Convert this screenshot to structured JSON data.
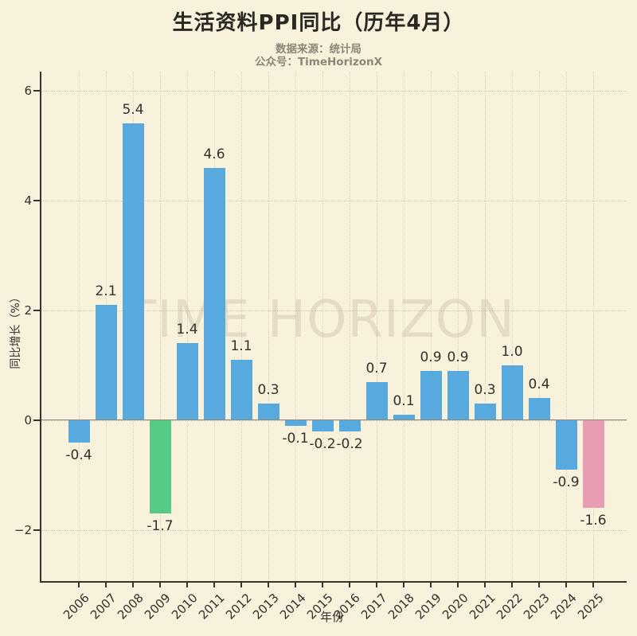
{
  "header": {
    "title": "生活资料PPI同比（历年4月）",
    "subtitle_source": "数据来源：统计局",
    "subtitle_account": "公众号：TimeHorizonX"
  },
  "watermark": "TIME HORIZON",
  "chart_data": {
    "type": "bar",
    "title": "生活资料PPI同比（历年4月）",
    "xlabel": "年份",
    "ylabel": "同比增长（%）",
    "categories": [
      "2006",
      "2007",
      "2008",
      "2009",
      "2010",
      "2011",
      "2012",
      "2013",
      "2014",
      "2015",
      "2016",
      "2017",
      "2018",
      "2019",
      "2020",
      "2021",
      "2022",
      "2023",
      "2024",
      "2025"
    ],
    "values": [
      -0.4,
      2.1,
      5.4,
      -1.7,
      1.4,
      4.6,
      1.1,
      0.3,
      -0.1,
      -0.2,
      -0.2,
      0.7,
      0.1,
      0.9,
      0.9,
      0.3,
      1.0,
      0.4,
      -0.9,
      -1.6
    ],
    "labels": [
      "-0.4",
      "2.1",
      "5.4",
      "-1.7",
      "1.4",
      "4.6",
      "1.1",
      "0.3",
      "-0.1",
      "-0.2",
      "-0.2",
      "0.7",
      "0.1",
      "0.9",
      "0.9",
      "0.3",
      "1.0",
      "0.4",
      "-0.9",
      "-1.6"
    ],
    "bar_colors": [
      "#58a9de",
      "#58a9de",
      "#58a9de",
      "#55cb86",
      "#58a9de",
      "#58a9de",
      "#58a9de",
      "#58a9de",
      "#58a9de",
      "#58a9de",
      "#58a9de",
      "#58a9de",
      "#58a9de",
      "#58a9de",
      "#58a9de",
      "#58a9de",
      "#58a9de",
      "#58a9de",
      "#58a9de",
      "#e89db3"
    ],
    "yticks": [
      6,
      4,
      2,
      0,
      -2
    ],
    "ylim": [
      -2.93,
      6.35
    ],
    "grid": "dotted",
    "legend": "none",
    "background_color": "#f8f1db"
  }
}
